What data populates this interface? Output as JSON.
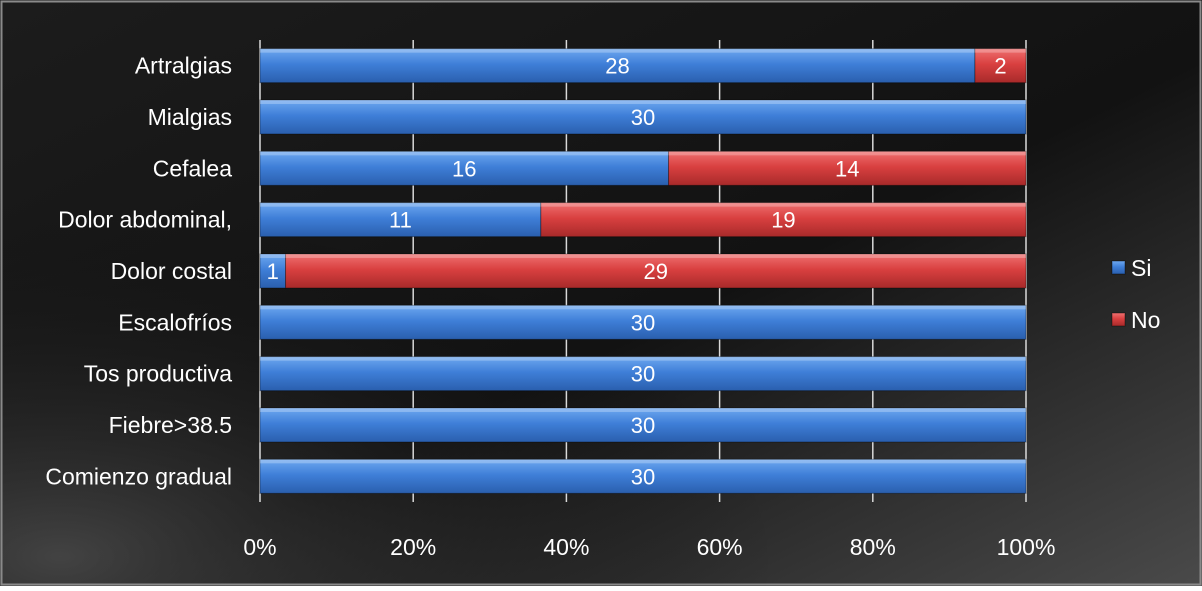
{
  "chart_data": {
    "type": "bar",
    "orientation": "horizontal",
    "stacked": "percent",
    "title": "",
    "xlabel": "",
    "ylabel": "",
    "categories": [
      "Artralgias",
      "Mialgias",
      "Cefalea",
      "Dolor abdominal,",
      "Dolor costal",
      "Escalofríos",
      "Tos productiva",
      "Fiebre>38.5",
      "Comienzo gradual"
    ],
    "series": [
      {
        "name": "Si",
        "values": [
          28,
          30,
          16,
          11,
          1,
          30,
          30,
          30,
          30
        ],
        "color": "#3f7fd8"
      },
      {
        "name": "No",
        "values": [
          2,
          0,
          14,
          19,
          29,
          0,
          0,
          0,
          0
        ],
        "color": "#d94040"
      }
    ],
    "xlim": [
      0,
      1
    ],
    "x_ticks": [
      "0%",
      "20%",
      "40%",
      "60%",
      "80%",
      "100%"
    ],
    "grid": "vertical",
    "legend_position": "right",
    "background": "dark-gradient",
    "label_color": "#ffffff"
  }
}
